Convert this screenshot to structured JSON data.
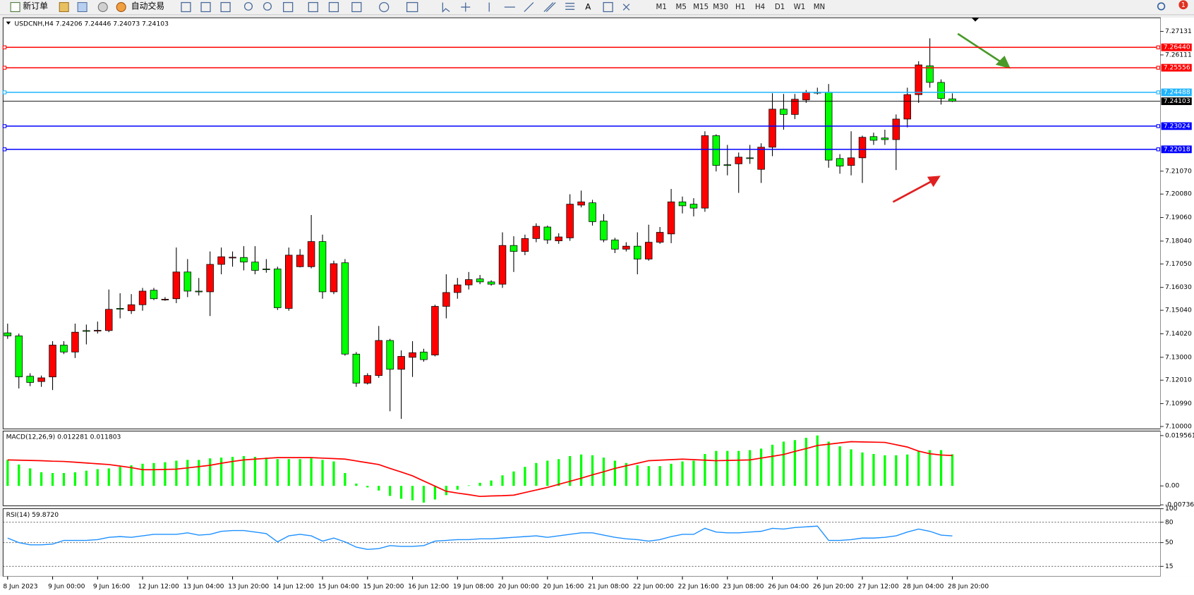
{
  "toolbar": {
    "new_order": "新订单",
    "auto_trading": "自动交易",
    "timeframes": [
      "M1",
      "M5",
      "M15",
      "M30",
      "H1",
      "H4",
      "D1",
      "W1",
      "MN"
    ],
    "notifications": "1"
  },
  "chart_data": [
    {
      "type": "candlestick",
      "header": "USDCNH,H4  7.24206 7.24446 7.24073 7.24103",
      "open": [
        7.1406,
        7.1393,
        7.1218,
        7.1195,
        7.1215,
        7.1353,
        7.1323,
        7.1416,
        7.1416,
        7.1416,
        7.1512,
        7.1502,
        7.1528,
        7.1591,
        7.1551,
        7.1554,
        7.167,
        7.1587,
        7.1584,
        7.1703,
        7.1733,
        7.1733,
        7.1713,
        7.1683,
        7.1683,
        7.1512,
        7.1693,
        7.1693,
        7.1802,
        7.1584,
        7.171,
        7.1314,
        7.1188,
        7.1221,
        7.1373,
        7.1248,
        7.13,
        7.1323,
        7.131,
        7.1521,
        7.1581,
        7.1614,
        7.164,
        7.1627,
        7.1617,
        7.1785,
        7.1759,
        7.1815,
        7.1865,
        7.1805,
        7.1818,
        7.196,
        7.197,
        7.1891,
        7.1809,
        7.1769,
        7.1782,
        7.1726,
        7.1799,
        7.1835,
        7.1974,
        7.1964,
        7.1947,
        7.2261,
        7.2135,
        7.2139,
        7.2165,
        7.2115,
        7.2211,
        7.2376,
        7.2353,
        7.2416,
        7.2449,
        7.2449,
        7.2162,
        7.2132,
        7.2165,
        7.2257,
        7.2251,
        7.2244,
        7.2333,
        7.2439,
        7.2564,
        7.2492,
        7.24206
      ],
      "high": [
        7.1446,
        7.1403,
        7.1231,
        7.1221,
        7.137,
        7.137,
        7.1446,
        7.1442,
        7.1455,
        7.1594,
        7.1578,
        7.1574,
        7.1601,
        7.1601,
        7.1561,
        7.1776,
        7.1726,
        7.1644,
        7.1759,
        7.1776,
        7.1759,
        7.1782,
        7.1782,
        7.1726,
        7.1693,
        7.1776,
        7.1769,
        7.1917,
        7.1832,
        7.1719,
        7.1726,
        7.1323,
        7.1231,
        7.1436,
        7.138,
        7.133,
        7.137,
        7.1337,
        7.1528,
        7.166,
        7.1644,
        7.167,
        7.1657,
        7.1634,
        7.1842,
        7.1825,
        7.1832,
        7.1881,
        7.1871,
        7.1838,
        7.2007,
        7.2023,
        7.1983,
        7.1921,
        7.1818,
        7.1799,
        7.1842,
        7.1875,
        7.1865,
        7.203,
        7.1997,
        7.199,
        7.228,
        7.2267,
        7.2221,
        7.2188,
        7.2221,
        7.2228,
        7.2445,
        7.2442,
        7.2442,
        7.2459,
        7.2469,
        7.2485,
        7.2181,
        7.228,
        7.2261,
        7.2274,
        7.2287,
        7.2353,
        7.2469,
        7.2584,
        7.2683,
        7.2505,
        7.24446
      ],
      "low": [
        7.138,
        7.1165,
        7.1175,
        7.1172,
        7.1158,
        7.1314,
        7.1297,
        7.1356,
        7.1403,
        7.1409,
        7.1469,
        7.1488,
        7.1502,
        7.1548,
        7.1545,
        7.1535,
        7.1561,
        7.1568,
        7.1479,
        7.166,
        7.1693,
        7.1677,
        7.166,
        7.1667,
        7.1505,
        7.1502,
        7.169,
        7.1686,
        7.1554,
        7.1574,
        7.1307,
        7.1172,
        7.1182,
        7.1211,
        7.1066,
        7.1033,
        7.1215,
        7.1281,
        7.1304,
        7.1469,
        7.1554,
        7.1594,
        7.1617,
        7.1611,
        7.1601,
        7.167,
        7.1743,
        7.1799,
        7.1792,
        7.1792,
        7.1805,
        7.195,
        7.1871,
        7.1799,
        7.1752,
        7.1759,
        7.166,
        7.1719,
        7.1792,
        7.1795,
        7.1924,
        7.1911,
        7.1931,
        7.2106,
        7.2089,
        7.2013,
        7.2139,
        7.2056,
        7.2172,
        7.2287,
        7.2333,
        7.2403,
        7.2439,
        7.2122,
        7.2096,
        7.2089,
        7.2056,
        7.2221,
        7.2221,
        7.2112,
        7.2297,
        7.2403,
        7.2469,
        7.2396,
        7.24073
      ],
      "close": [
        7.1393,
        7.1215,
        7.1191,
        7.1211,
        7.1353,
        7.1323,
        7.1409,
        7.1415,
        7.1417,
        7.1508,
        7.1511,
        7.1528,
        7.1587,
        7.1554,
        7.1552,
        7.167,
        7.1587,
        7.1586,
        7.1703,
        7.1736,
        7.1734,
        7.1713,
        7.1677,
        7.1682,
        7.1515,
        7.1743,
        7.1743,
        7.1802,
        7.1584,
        7.1706,
        7.1314,
        7.1188,
        7.1221,
        7.1373,
        7.1248,
        7.1304,
        7.132,
        7.129,
        7.1521,
        7.1581,
        7.1614,
        7.1637,
        7.1627,
        7.1617,
        7.1785,
        7.1759,
        7.1815,
        7.1868,
        7.1809,
        7.1822,
        7.1964,
        7.1974,
        7.1888,
        7.1809,
        7.1769,
        7.1782,
        7.1726,
        7.1799,
        7.1842,
        7.1974,
        7.1957,
        7.1947,
        7.2261,
        7.2132,
        7.2134,
        7.2168,
        7.2162,
        7.2211,
        7.2376,
        7.2353,
        7.2419,
        7.2449,
        7.2448,
        7.2155,
        7.2129,
        7.2165,
        7.2254,
        7.2241,
        7.2244,
        7.2333,
        7.2439,
        7.2568,
        7.2492,
        7.2422,
        7.24103
      ],
      "up_color": "#ff0000",
      "down_color": "#00ff00",
      "ylim": [
        7.099,
        7.2769
      ],
      "yticks": [
        7.27131,
        7.26111,
        {
          "value": 7.2107,
          "label": "7.21070"
        },
        {
          "value": 7.2008,
          "label": "7.20080"
        },
        {
          "value": 7.1906,
          "label": "7.19060"
        },
        {
          "value": 7.1804,
          "label": "7.18040"
        },
        {
          "value": 7.1705,
          "label": "7.17050"
        },
        {
          "value": 7.1603,
          "label": "7.16030"
        },
        {
          "value": 7.1504,
          "label": "7.15040"
        },
        {
          "value": 7.1402,
          "label": "7.14020"
        },
        {
          "value": 7.13,
          "label": "7.13000"
        },
        {
          "value": 7.1201,
          "label": "7.12010"
        },
        {
          "value": 7.1099,
          "label": "7.10990"
        },
        {
          "value": 7.1,
          "label": "7.10000"
        }
      ],
      "hlines": [
        {
          "value": 7.2644,
          "label": "7.26440",
          "color": "#ff0000"
        },
        {
          "value": 7.25556,
          "color": "#ff0000"
        },
        {
          "value": 7.24488,
          "color": "#1eb4ff"
        },
        {
          "value": 7.24103,
          "color": "#000000"
        },
        {
          "value": 7.23024,
          "color": "#0000ff"
        },
        {
          "value": 7.22018,
          "color": "#0000ff"
        }
      ],
      "xticks": [
        {
          "value": 0,
          "label": "8 Jun 2023"
        },
        {
          "value": 4,
          "label": "9 Jun 00:00"
        },
        {
          "value": 8,
          "label": "9 Jun 16:00"
        },
        {
          "value": 12,
          "label": "12 Jun 12:00"
        },
        {
          "value": 16,
          "label": "13 Jun 04:00"
        },
        {
          "value": 20,
          "label": "13 Jun 20:00"
        },
        {
          "value": 24,
          "label": "14 Jun 12:00"
        },
        {
          "value": 28,
          "label": "15 Jun 04:00"
        },
        {
          "value": 32,
          "label": "15 Jun 20:00"
        },
        {
          "value": 36,
          "label": "16 Jun 12:00"
        },
        {
          "value": 40,
          "label": "19 Jun 08:00"
        },
        {
          "value": 44,
          "label": "20 Jun 00:00"
        },
        {
          "value": 48,
          "label": "20 Jun 16:00"
        },
        {
          "value": 52,
          "label": "21 Jun 08:00"
        },
        {
          "value": 56,
          "label": "22 Jun 00:00"
        },
        {
          "value": 60,
          "label": "22 Jun 16:00"
        },
        {
          "value": 64,
          "label": "23 Jun 08:00"
        },
        {
          "value": 68,
          "label": "26 Jun 04:00"
        },
        {
          "value": 72,
          "label": "26 Jun 20:00"
        },
        {
          "value": 76,
          "label": "27 Jun 12:00"
        },
        {
          "value": 80,
          "label": "28 Jun 04:00"
        },
        {
          "value": 84,
          "label": "28 Jun 20:00"
        }
      ]
    },
    {
      "type": "macd",
      "header": "MACD(12,26,9) 0.012281 0.011803",
      "series": [
        {
          "style": "histogram",
          "color": "#00ff00",
          "values": [
            0.0101,
            0.0083,
            0.0068,
            0.0053,
            0.005,
            0.005,
            0.0053,
            0.0059,
            0.0065,
            0.0068,
            0.0074,
            0.008,
            0.0086,
            0.0089,
            0.0092,
            0.0098,
            0.0101,
            0.0101,
            0.0107,
            0.011,
            0.0113,
            0.0116,
            0.0113,
            0.011,
            0.0104,
            0.0104,
            0.0104,
            0.0107,
            0.0101,
            0.0095,
            0.005,
            0.0009,
            -0.0006,
            -0.0018,
            -0.0039,
            -0.005,
            -0.0056,
            -0.0065,
            -0.0053,
            -0.0036,
            -0.0015,
            0.0002,
            0.0012,
            0.0021,
            0.0041,
            0.0056,
            0.0074,
            0.0089,
            0.0098,
            0.0104,
            0.0116,
            0.0122,
            0.0119,
            0.011,
            0.0098,
            0.0089,
            0.008,
            0.0077,
            0.0077,
            0.0086,
            0.0095,
            0.0098,
            0.0124,
            0.0136,
            0.0136,
            0.0136,
            0.0139,
            0.0145,
            0.016,
            0.0172,
            0.0178,
            0.0187,
            0.0196,
            0.0172,
            0.0154,
            0.0142,
            0.013,
            0.0124,
            0.0119,
            0.0119,
            0.0122,
            0.0136,
            0.0139,
            0.0139,
            0.012281
          ]
        },
        {
          "style": "line",
          "color": "#ff0000",
          "values": [
            0.0101,
            0.01,
            0.0099,
            0.0098,
            0.0096,
            0.0095,
            0.0092,
            0.0089,
            0.0086,
            0.0083,
            0.0077,
            0.0071,
            0.0063,
            0.0063,
            0.0064,
            0.0065,
            0.007,
            0.0075,
            0.008,
            0.0088,
            0.0095,
            0.0101,
            0.0104,
            0.0107,
            0.011,
            0.011,
            0.011,
            0.011,
            0.0108,
            0.0106,
            0.0104,
            0.0097,
            0.009,
            0.0083,
            0.0068,
            0.0054,
            0.0039,
            0.0019,
            -0.0001,
            -0.0021,
            -0.0028,
            -0.0034,
            -0.0041,
            -0.0039,
            -0.0038,
            -0.0036,
            -0.0026,
            -0.0016,
            -0.0006,
            0.0006,
            0.0018,
            0.003,
            0.0043,
            0.0055,
            0.0068,
            0.0078,
            0.0088,
            0.0098,
            0.01,
            0.0102,
            0.0104,
            0.0102,
            0.01,
            0.0098,
            0.0099,
            0.01,
            0.0101,
            0.0108,
            0.0115,
            0.0122,
            0.0134,
            0.0145,
            0.0157,
            0.0162,
            0.0167,
            0.0172,
            0.0171,
            0.017,
            0.0169,
            0.016,
            0.0151,
            0.0135,
            0.0125,
            0.012,
            0.011803
          ]
        }
      ],
      "ylim": [
        -0.0077,
        0.0213
      ],
      "yticks": [
        0.019561,
        {
          "value": 0,
          "label": "0.00"
        },
        -0.007367
      ]
    },
    {
      "type": "line",
      "header": "RSI(14) 59.8720",
      "color": "#1e90ff",
      "values": [
        56.7,
        50,
        46.7,
        46.7,
        47.8,
        53.3,
        53.3,
        53.3,
        54.4,
        57.8,
        58.9,
        57.8,
        60,
        62.2,
        62.2,
        62.2,
        64.4,
        61.1,
        62.2,
        66.7,
        67.8,
        67.8,
        65.6,
        63.3,
        51.1,
        60,
        62.2,
        60,
        52.2,
        56.7,
        51.1,
        43.3,
        40,
        41.1,
        45.6,
        44.4,
        44.4,
        45.6,
        52.2,
        53.3,
        54.4,
        54.4,
        55.6,
        55.6,
        56.7,
        57.8,
        58.9,
        60,
        57.8,
        60,
        62.2,
        64.4,
        64.4,
        61.1,
        57.8,
        55.6,
        54.4,
        52.2,
        54.4,
        58.9,
        62.2,
        62.2,
        71.1,
        65.6,
        64.4,
        64.4,
        65.6,
        66.7,
        71.1,
        70,
        72.2,
        73.3,
        74.4,
        53.3,
        53.3,
        54.4,
        56.7,
        56.7,
        57.8,
        60,
        65.6,
        70,
        66.7,
        61.1,
        59.872
      ],
      "ylim": [
        0,
        100
      ],
      "yticks": [
        100,
        80,
        50,
        15
      ],
      "levels": [
        80,
        50,
        15
      ]
    }
  ]
}
